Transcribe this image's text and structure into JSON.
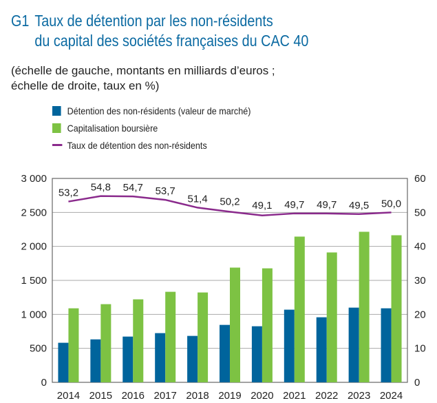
{
  "title": {
    "number": "G1",
    "line1": "Taux de détention par les non-résidents",
    "line2": "du capital des sociétés françaises du CAC 40"
  },
  "subtitle": {
    "line1": "(échelle de gauche, montants en milliards d’euros ;",
    "line2": "échelle de droite, taux en %)"
  },
  "colors": {
    "title": "#0b6aa2",
    "blue": "#00649c",
    "green": "#7dc243",
    "purple": "#8a2a8c"
  },
  "chart_data": {
    "type": "bar+line",
    "categories": [
      "2014",
      "2015",
      "2016",
      "2017",
      "2018",
      "2019",
      "2020",
      "2021",
      "2022",
      "2023",
      "2024"
    ],
    "series": [
      {
        "name": "Détention des non-résidents (valeur de marché)",
        "type": "bar",
        "axis": "left",
        "values": [
          582,
          632,
          673,
          724,
          683,
          845,
          825,
          1069,
          957,
          1099,
          1089
        ]
      },
      {
        "name": "Capitalisation boursière",
        "type": "bar",
        "axis": "left",
        "values": [
          1089,
          1150,
          1221,
          1332,
          1322,
          1688,
          1677,
          2144,
          1911,
          2215,
          2164
        ]
      },
      {
        "name": "Taux de détention des non-résidents",
        "type": "line",
        "axis": "right",
        "values": [
          53.2,
          54.8,
          54.7,
          53.7,
          51.4,
          50.2,
          49.1,
          49.7,
          49.7,
          49.5,
          50.0
        ],
        "labels": [
          "53,2",
          "54,8",
          "54,7",
          "53,7",
          "51,4",
          "50,2",
          "49,1",
          "49,7",
          "49,7",
          "49,5",
          "50,0"
        ]
      }
    ],
    "ylim_left": [
      0,
      3000
    ],
    "ylim_right": [
      0,
      60
    ],
    "yticks_left": [
      "0",
      "500",
      "1 000",
      "1 500",
      "2 000",
      "2 500",
      "3 000"
    ],
    "yticks_right": [
      "0",
      "10",
      "20",
      "30",
      "40",
      "50",
      "60"
    ],
    "grid": true,
    "legend_position": "top-left"
  }
}
